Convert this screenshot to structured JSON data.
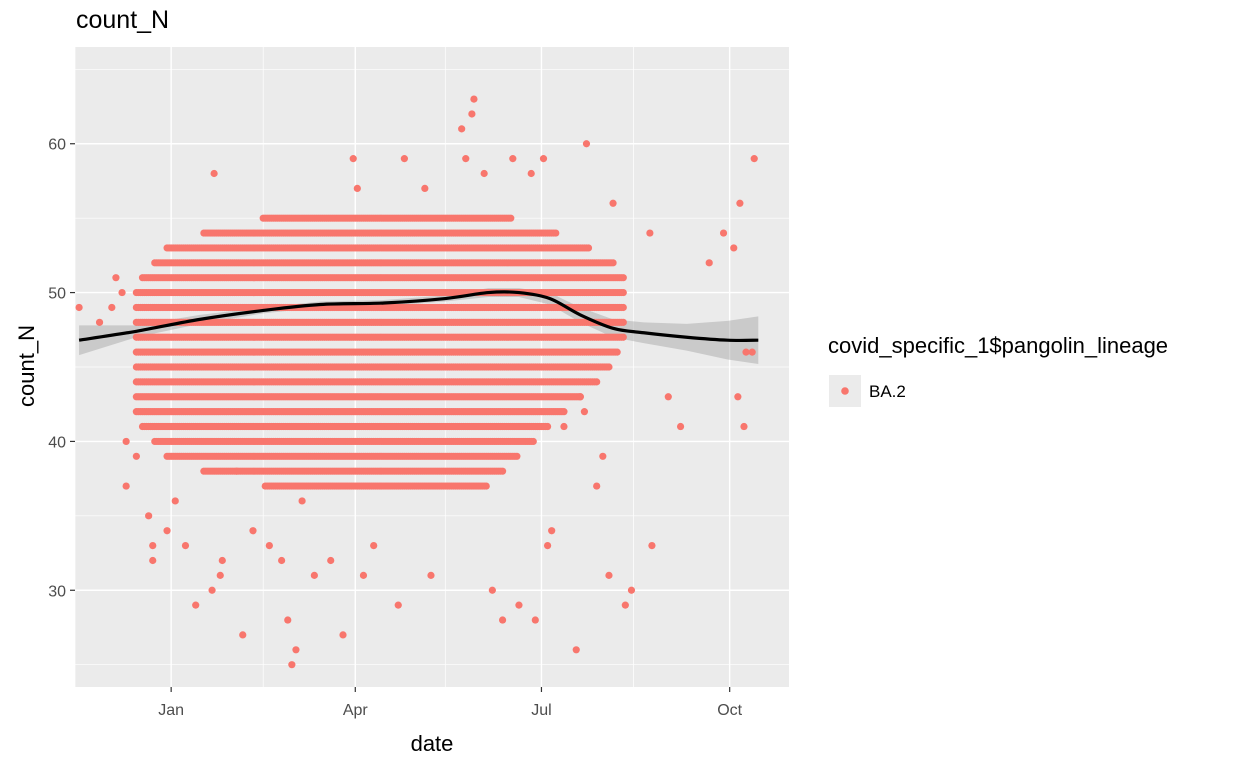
{
  "chart_data": {
    "type": "scatter",
    "title": "count_N",
    "xlabel": "date",
    "ylabel": "count_N",
    "x_ticks": [
      "Jan",
      "Apr",
      "Jul",
      "Oct"
    ],
    "y_ticks": [
      30,
      40,
      50,
      60
    ],
    "xlim": [
      "2021-11-15",
      "2022-10-30"
    ],
    "ylim": [
      23.5,
      66.5
    ],
    "grid": true,
    "legend": {
      "title": "covid_specific_1$pangolin_lineage",
      "position": "right",
      "entries": [
        {
          "label": "BA.2",
          "color": "#F8766D"
        }
      ]
    },
    "point_color": "#F8766D",
    "smooth_color": "#000000",
    "series": [
      {
        "name": "BA.2",
        "points": [
          [
            "2021-11-17",
            49
          ],
          [
            "2021-11-27",
            48
          ],
          [
            "2021-12-03",
            49
          ],
          [
            "2021-12-05",
            51
          ],
          [
            "2021-12-08",
            50
          ],
          [
            "2021-12-10",
            40
          ],
          [
            "2021-12-10",
            37
          ],
          [
            "2021-12-15",
            39
          ],
          [
            "2021-12-21",
            35
          ],
          [
            "2021-12-23",
            33
          ],
          [
            "2021-12-23",
            32
          ],
          [
            "2021-12-30",
            34
          ],
          [
            "2022-01-03",
            36
          ],
          [
            "2022-01-08",
            33
          ],
          [
            "2022-01-13",
            29
          ],
          [
            "2022-01-21",
            30
          ],
          [
            "2022-01-22",
            58
          ],
          [
            "2022-01-25",
            31
          ],
          [
            "2022-01-26",
            32
          ],
          [
            "2022-02-02",
            38
          ],
          [
            "2022-02-05",
            27
          ],
          [
            "2022-02-10",
            34
          ],
          [
            "2022-02-18",
            33
          ],
          [
            "2022-02-24",
            32
          ],
          [
            "2022-02-27",
            28
          ],
          [
            "2022-03-01",
            25
          ],
          [
            "2022-03-03",
            26
          ],
          [
            "2022-03-06",
            36
          ],
          [
            "2022-03-12",
            31
          ],
          [
            "2022-03-20",
            32
          ],
          [
            "2022-03-26",
            27
          ],
          [
            "2022-03-31",
            59
          ],
          [
            "2022-04-02",
            57
          ],
          [
            "2022-04-05",
            31
          ],
          [
            "2022-04-10",
            33
          ],
          [
            "2022-04-22",
            29
          ],
          [
            "2022-04-25",
            59
          ],
          [
            "2022-05-05",
            57
          ],
          [
            "2022-05-08",
            31
          ],
          [
            "2022-05-23",
            61
          ],
          [
            "2022-05-25",
            59
          ],
          [
            "2022-05-28",
            62
          ],
          [
            "2022-05-29",
            63
          ],
          [
            "2022-06-03",
            58
          ],
          [
            "2022-06-07",
            30
          ],
          [
            "2022-06-12",
            28
          ],
          [
            "2022-06-17",
            59
          ],
          [
            "2022-06-20",
            29
          ],
          [
            "2022-06-26",
            58
          ],
          [
            "2022-06-28",
            28
          ],
          [
            "2022-07-02",
            59
          ],
          [
            "2022-07-04",
            33
          ],
          [
            "2022-07-06",
            34
          ],
          [
            "2022-07-12",
            41
          ],
          [
            "2022-07-18",
            26
          ],
          [
            "2022-07-20",
            43
          ],
          [
            "2022-07-22",
            42
          ],
          [
            "2022-07-23",
            60
          ],
          [
            "2022-07-28",
            37
          ],
          [
            "2022-07-31",
            39
          ],
          [
            "2022-08-03",
            31
          ],
          [
            "2022-08-05",
            56
          ],
          [
            "2022-08-11",
            29
          ],
          [
            "2022-08-14",
            30
          ],
          [
            "2022-08-23",
            54
          ],
          [
            "2022-08-24",
            33
          ],
          [
            "2022-09-01",
            43
          ],
          [
            "2022-09-07",
            41
          ],
          [
            "2022-09-21",
            52
          ],
          [
            "2022-09-28",
            54
          ],
          [
            "2022-10-03",
            53
          ],
          [
            "2022-10-05",
            43
          ],
          [
            "2022-10-06",
            56
          ],
          [
            "2022-10-08",
            41
          ],
          [
            "2022-10-09",
            46
          ],
          [
            "2022-10-12",
            46
          ],
          [
            "2022-10-13",
            59
          ]
        ],
        "dense_band": {
          "x_start": "2021-12-15",
          "x_end": "2022-08-10",
          "y_min_by_month": [
            [
              "2021-12-15",
              42
            ],
            [
              "2022-01-01",
              39
            ],
            [
              "2022-02-01",
              38
            ],
            [
              "2022-03-01",
              37
            ],
            [
              "2022-04-01",
              37
            ],
            [
              "2022-05-01",
              37
            ],
            [
              "2022-06-01",
              37
            ],
            [
              "2022-07-01",
              41
            ],
            [
              "2022-08-01",
              45
            ],
            [
              "2022-08-10",
              47
            ]
          ],
          "y_max_by_month": [
            [
              "2021-12-15",
              50
            ],
            [
              "2022-01-01",
              53
            ],
            [
              "2022-02-01",
              54
            ],
            [
              "2022-03-01",
              55
            ],
            [
              "2022-04-01",
              55
            ],
            [
              "2022-05-01",
              55
            ],
            [
              "2022-06-01",
              55
            ],
            [
              "2022-07-01",
              54
            ],
            [
              "2022-08-01",
              52
            ],
            [
              "2022-08-10",
              51
            ]
          ]
        }
      }
    ],
    "smooth": {
      "x": [
        "2021-11-17",
        "2021-12-15",
        "2022-01-15",
        "2022-02-15",
        "2022-03-15",
        "2022-04-15",
        "2022-05-15",
        "2022-06-05",
        "2022-06-20",
        "2022-07-05",
        "2022-07-20",
        "2022-08-05",
        "2022-08-20",
        "2022-09-10",
        "2022-09-30",
        "2022-10-15"
      ],
      "y": [
        46.8,
        47.4,
        48.2,
        48.8,
        49.2,
        49.3,
        49.6,
        50.0,
        50.0,
        49.6,
        48.5,
        47.6,
        47.3,
        47.0,
        46.8,
        46.8
      ],
      "se_lower": [
        45.8,
        47.0,
        47.9,
        48.6,
        49.0,
        49.1,
        49.4,
        49.7,
        49.7,
        49.2,
        48.0,
        47.0,
        46.6,
        46.1,
        45.5,
        45.2
      ],
      "se_upper": [
        47.8,
        47.8,
        48.5,
        49.0,
        49.4,
        49.5,
        49.8,
        50.3,
        50.3,
        50.0,
        49.0,
        48.2,
        48.0,
        47.9,
        48.1,
        48.4
      ]
    }
  }
}
